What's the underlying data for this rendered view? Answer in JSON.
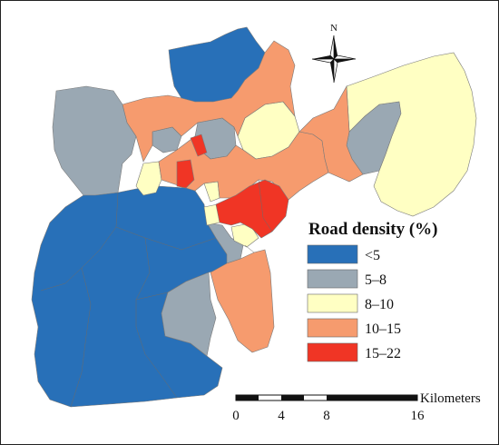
{
  "legend": {
    "title": "Road density (%)",
    "classes": [
      {
        "label": "<5",
        "color": "#2870b8"
      },
      {
        "label": "5–8",
        "color": "#9aa8b3"
      },
      {
        "label": "8–10",
        "color": "#ffffc3"
      },
      {
        "label": "10–15",
        "color": "#f69b6e"
      },
      {
        "label": "15–22",
        "color": "#f03525"
      }
    ]
  },
  "north_arrow": {
    "label": "N"
  },
  "scale_bar": {
    "unit": "Kilometers",
    "ticks": [
      "0",
      "4",
      "8",
      "16"
    ]
  }
}
